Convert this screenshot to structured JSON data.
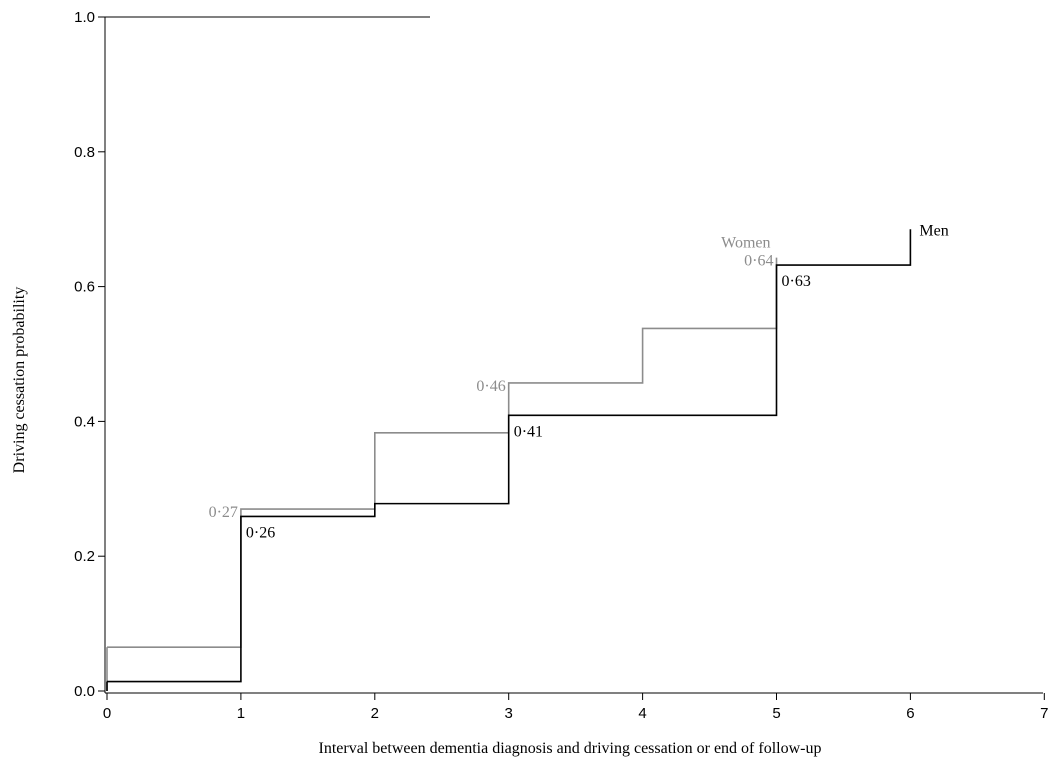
{
  "chart_data": {
    "type": "line",
    "step": true,
    "title": "",
    "xlabel": "Interval between dementia diagnosis and driving cessation or end of follow-up",
    "ylabel": "Driving cessation probability",
    "xlim": [
      0,
      7
    ],
    "ylim": [
      0,
      1
    ],
    "xticks": [
      "0",
      "1",
      "2",
      "3",
      "4",
      "5",
      "6",
      "7"
    ],
    "yticks": [
      "0.0",
      "0.2",
      "0.4",
      "0.6",
      "0.8",
      "1.0"
    ],
    "series": [
      {
        "name": "Women",
        "color": "#8c8c8c",
        "x": [
          0,
          1,
          2,
          3,
          4,
          5
        ],
        "y": [
          0.065,
          0.27,
          0.383,
          0.457,
          0.538,
          0.643
        ],
        "end_x": 5,
        "labels": [
          {
            "x": 1,
            "y": 0.27,
            "text": "0·27"
          },
          {
            "x": 3,
            "y": 0.457,
            "text": "0·46"
          },
          {
            "x": 5,
            "y": 0.643,
            "text": "0·64"
          }
        ]
      },
      {
        "name": "Men",
        "color": "#000000",
        "x": [
          0,
          1,
          2,
          3,
          4,
          5,
          6
        ],
        "y": [
          0.014,
          0.259,
          0.278,
          0.409,
          0.409,
          0.632,
          0.685
        ],
        "end_x": 6,
        "labels": [
          {
            "x": 1,
            "y": 0.259,
            "text": "0·26"
          },
          {
            "x": 3,
            "y": 0.409,
            "text": "0·41"
          },
          {
            "x": 5,
            "y": 0.632,
            "text": "0·63"
          }
        ]
      }
    ],
    "grid": false,
    "legend": "none"
  }
}
